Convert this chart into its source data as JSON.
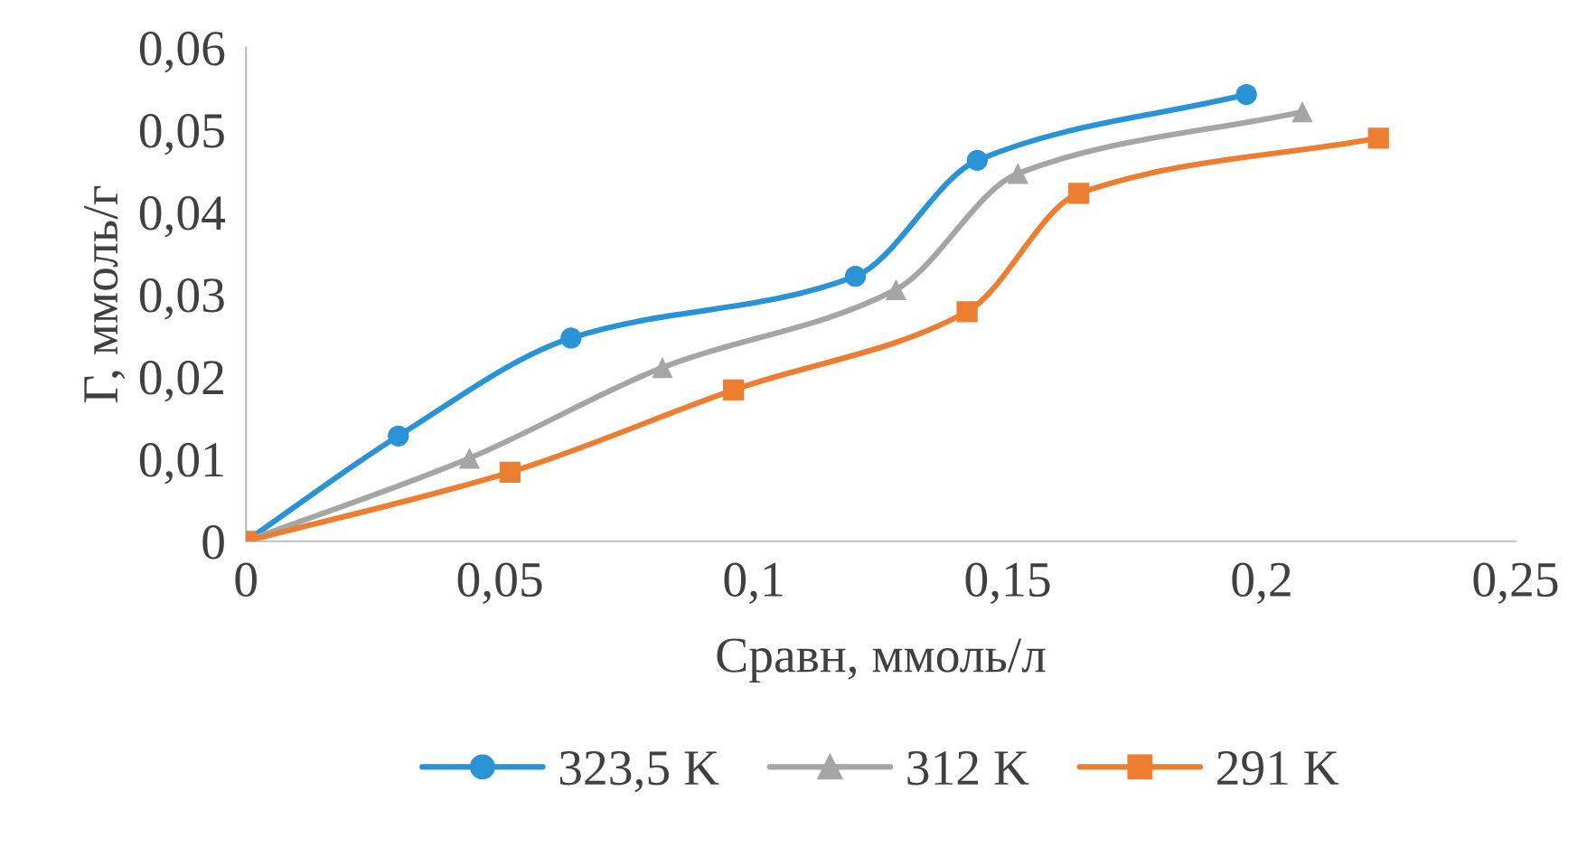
{
  "chart_data": {
    "type": "line",
    "xlabel": "Сравн, ммоль/л",
    "ylabel": "Г, ммоль/г",
    "xlim": [
      0,
      0.25
    ],
    "xticks": [
      0,
      {
        "value": 0.05,
        "label": "0,05"
      },
      {
        "value": 0.1,
        "label": "0,1"
      },
      {
        "value": 0.15,
        "label": "0,15"
      },
      {
        "value": 0.2,
        "label": "0,2"
      },
      {
        "value": 0.25,
        "label": "0,25"
      }
    ],
    "ylim": [
      0,
      0.06
    ],
    "yticks": [
      0,
      {
        "value": 0.01,
        "label": "0,01"
      },
      {
        "value": 0.02,
        "label": "0,02"
      },
      {
        "value": 0.03,
        "label": "0,03"
      },
      {
        "value": 0.04,
        "label": "0,04"
      },
      {
        "value": 0.05,
        "label": "0,05"
      },
      {
        "value": 0.06,
        "label": "0,06"
      }
    ],
    "grid": false,
    "legend": "bottom",
    "line_style": "solid",
    "series": [
      {
        "name": "323,5 K",
        "color": "#2a93d5",
        "marker": "circle",
        "x": [
          0,
          0.03,
          0.064,
          0.12,
          0.144,
          0.197
        ],
        "values": [
          0,
          0.0128,
          0.0247,
          0.0322,
          0.0463,
          0.0543
        ]
      },
      {
        "name": "312 K",
        "color": "#a5a5a5",
        "marker": "triangle",
        "x": [
          0,
          0.044,
          0.082,
          0.128,
          0.152,
          0.208
        ],
        "values": [
          0,
          0.0101,
          0.0211,
          0.0306,
          0.0447,
          0.0522
        ]
      },
      {
        "name": "291 K",
        "color": "#ed7d31",
        "marker": "square",
        "x": [
          0,
          0.052,
          0.096,
          0.142,
          0.164,
          0.223
        ],
        "values": [
          0,
          0.0084,
          0.0184,
          0.0279,
          0.0423,
          0.049
        ]
      }
    ]
  }
}
